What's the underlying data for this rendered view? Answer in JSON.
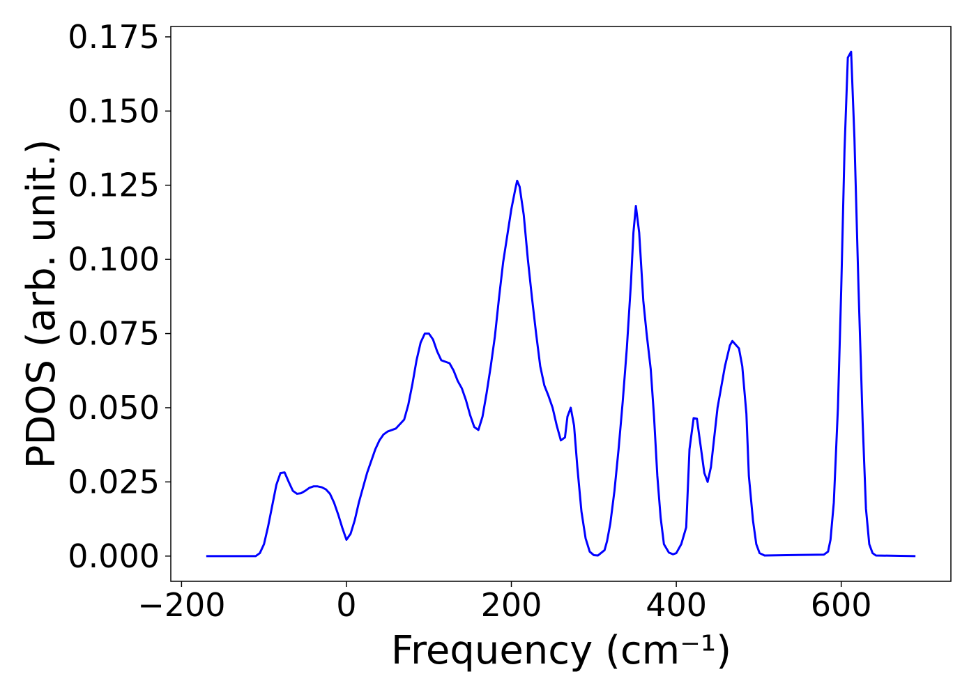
{
  "chart_data": {
    "type": "line",
    "xlabel": "Frequency (cm⁻¹)",
    "ylabel": "PDOS (arb. unit.)",
    "x": [
      -170,
      -130,
      -110,
      -105,
      -100,
      -95,
      -90,
      -85,
      -80,
      -75,
      -70,
      -65,
      -60,
      -55,
      -50,
      -45,
      -40,
      -35,
      -30,
      -25,
      -20,
      -15,
      -10,
      -5,
      0,
      5,
      10,
      15,
      20,
      25,
      30,
      35,
      40,
      45,
      50,
      55,
      60,
      65,
      70,
      75,
      80,
      85,
      90,
      95,
      100,
      105,
      110,
      115,
      120,
      125,
      130,
      135,
      140,
      145,
      150,
      155,
      160,
      165,
      170,
      175,
      180,
      185,
      190,
      195,
      200,
      205,
      207,
      210,
      215,
      220,
      225,
      230,
      235,
      240,
      245,
      250,
      255,
      260,
      265,
      268,
      272,
      276,
      280,
      285,
      290,
      295,
      300,
      305,
      313,
      316,
      320,
      325,
      330,
      335,
      340,
      345,
      348,
      351,
      355,
      360,
      364,
      369,
      373,
      377,
      381,
      385,
      391,
      396,
      400,
      406,
      412,
      416,
      421,
      425,
      434,
      438,
      442,
      450,
      459,
      465,
      468,
      476,
      480,
      485,
      488,
      493,
      497,
      501,
      507,
      579,
      584,
      587,
      591,
      596,
      600,
      604,
      608,
      612,
      616,
      621,
      626,
      630,
      634,
      638,
      642,
      690
    ],
    "series": [
      {
        "name": "PDOS",
        "color": "#0000ff",
        "values": [
          0,
          0,
          0,
          0.001,
          0.004,
          0.01,
          0.017,
          0.024,
          0.028,
          0.0282,
          0.025,
          0.022,
          0.021,
          0.0212,
          0.022,
          0.023,
          0.0235,
          0.0235,
          0.0232,
          0.0225,
          0.021,
          0.018,
          0.014,
          0.0095,
          0.0055,
          0.0075,
          0.012,
          0.018,
          0.023,
          0.028,
          0.032,
          0.036,
          0.039,
          0.041,
          0.042,
          0.0425,
          0.043,
          0.0445,
          0.046,
          0.051,
          0.058,
          0.066,
          0.072,
          0.075,
          0.075,
          0.073,
          0.069,
          0.066,
          0.0655,
          0.065,
          0.0625,
          0.059,
          0.0565,
          0.0525,
          0.0475,
          0.0435,
          0.0425,
          0.047,
          0.055,
          0.064,
          0.074,
          0.087,
          0.099,
          0.108,
          0.117,
          0.124,
          0.1265,
          0.1245,
          0.115,
          0.1,
          0.087,
          0.075,
          0.064,
          0.0575,
          0.054,
          0.05,
          0.044,
          0.039,
          0.04,
          0.047,
          0.05,
          0.044,
          0.03,
          0.015,
          0.006,
          0.0015,
          0.0003,
          0.0002,
          0.002,
          0.005,
          0.011,
          0.022,
          0.036,
          0.052,
          0.07,
          0.092,
          0.109,
          0.118,
          0.109,
          0.086,
          0.075,
          0.063,
          0.047,
          0.027,
          0.013,
          0.004,
          0.0012,
          0.0006,
          0.001,
          0.004,
          0.0097,
          0.036,
          0.0465,
          0.0463,
          0.028,
          0.025,
          0.03,
          0.05,
          0.064,
          0.071,
          0.0725,
          0.07,
          0.064,
          0.048,
          0.027,
          0.012,
          0.004,
          0.001,
          0.0002,
          0.0005,
          0.0015,
          0.0055,
          0.018,
          0.05,
          0.09,
          0.137,
          0.168,
          0.17,
          0.141,
          0.09,
          0.045,
          0.016,
          0.004,
          0.001,
          0.0002,
          0
        ]
      }
    ],
    "xlim": [
      -213,
      733
    ],
    "ylim": [
      -0.0085,
      0.1785
    ],
    "xticks": [
      {
        "value": -200,
        "label": "−200"
      },
      0,
      200,
      400,
      600
    ],
    "yticks": [
      {
        "value": 0,
        "label": "0.000"
      },
      {
        "value": 0.025,
        "label": "0.025"
      },
      {
        "value": 0.05,
        "label": "0.050"
      },
      {
        "value": 0.075,
        "label": "0.075"
      },
      {
        "value": 0.1,
        "label": "0.100"
      },
      {
        "value": 0.125,
        "label": "0.125"
      },
      {
        "value": 0.15,
        "label": "0.150"
      },
      {
        "value": 0.175,
        "label": "0.175"
      }
    ],
    "grid": false
  }
}
